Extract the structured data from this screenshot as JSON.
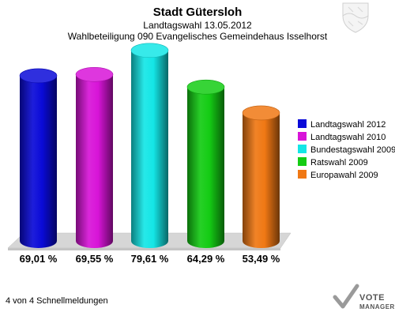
{
  "header": {
    "title": "Stadt Gütersloh",
    "subtitle": "Landtagswahl 13.05.2012",
    "district": "Wahlbeteiligung 090 Evangelisches Gemeindehaus Isselhorst"
  },
  "footer": {
    "status": "4 von 4 Schnellmeldungen"
  },
  "logo": {
    "line1": "VOTE",
    "line2": "MANAGER",
    "crest_icon": "coat-of-arms-icon",
    "check_icon": "checkmark-icon"
  },
  "chart_data": {
    "type": "bar",
    "title": "",
    "xlabel": "",
    "ylabel": "",
    "ylim": [
      0,
      100
    ],
    "grid": false,
    "legend_position": "right",
    "categories": [
      "Landtagswahl 2012",
      "Landtagswahl 2010",
      "Bundestagswahl 2009",
      "Ratswahl 2009",
      "Europawahl 2009"
    ],
    "values": [
      69.01,
      69.55,
      79.61,
      64.29,
      53.49
    ],
    "value_labels": [
      "69,01 %",
      "69,55 %",
      "79,61 %",
      "64,29 %",
      "53,49 %"
    ],
    "colors": [
      "#0a0ad8",
      "#d814d8",
      "#14e6e6",
      "#14cc14",
      "#f07814"
    ]
  }
}
